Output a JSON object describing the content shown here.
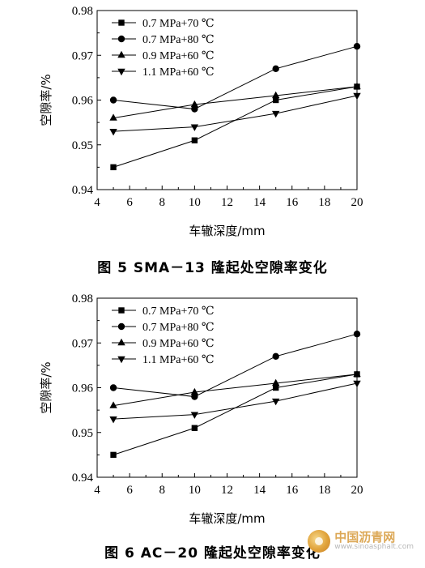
{
  "figures": [
    {
      "caption": "图 5   SMA－13 隆起处空隙率变化",
      "chart_data": {
        "type": "line",
        "xlabel": "车辙深度/mm",
        "ylabel": "空隙率/%",
        "xlim": [
          4,
          20
        ],
        "ylim": [
          0.94,
          0.98
        ],
        "xticks": [
          4,
          6,
          8,
          10,
          12,
          14,
          16,
          18,
          20
        ],
        "yticks": [
          0.94,
          0.95,
          0.96,
          0.97,
          0.98
        ],
        "legend_position": "top-left",
        "grid": false,
        "x": [
          5,
          10,
          15,
          20
        ],
        "series": [
          {
            "name": "0.7 MPa+70 ℃",
            "marker": "square",
            "values": [
              0.945,
              0.951,
              0.96,
              0.963
            ]
          },
          {
            "name": "0.7 MPa+80 ℃",
            "marker": "circle",
            "values": [
              0.96,
              0.958,
              0.967,
              0.972
            ]
          },
          {
            "name": "0.9 MPa+60 ℃",
            "marker": "triangle-up",
            "values": [
              0.956,
              0.959,
              0.961,
              0.963
            ]
          },
          {
            "name": "1.1 MPa+60 ℃",
            "marker": "triangle-down",
            "values": [
              0.953,
              0.954,
              0.957,
              0.961
            ]
          }
        ]
      }
    },
    {
      "caption": "图 6   AC－20 隆起处空隙率变化",
      "chart_data": {
        "type": "line",
        "xlabel": "车辙深度/mm",
        "ylabel": "空隙率/%",
        "xlim": [
          4,
          20
        ],
        "ylim": [
          0.94,
          0.98
        ],
        "xticks": [
          4,
          6,
          8,
          10,
          12,
          14,
          16,
          18,
          20
        ],
        "yticks": [
          0.94,
          0.95,
          0.96,
          0.97,
          0.98
        ],
        "legend_position": "top-left",
        "grid": false,
        "x": [
          5,
          10,
          15,
          20
        ],
        "series": [
          {
            "name": "0.7 MPa+70 ℃",
            "marker": "square",
            "values": [
              0.945,
              0.951,
              0.96,
              0.963
            ]
          },
          {
            "name": "0.7 MPa+80 ℃",
            "marker": "circle",
            "values": [
              0.96,
              0.958,
              0.967,
              0.972
            ]
          },
          {
            "name": "0.9 MPa+60 ℃",
            "marker": "triangle-up",
            "values": [
              0.956,
              0.959,
              0.961,
              0.963
            ]
          },
          {
            "name": "1.1 MPa+60 ℃",
            "marker": "triangle-down",
            "values": [
              0.953,
              0.954,
              0.957,
              0.961
            ]
          }
        ]
      }
    }
  ],
  "watermark": {
    "name": "中国沥青网",
    "url": "www.sinoasphalt.com",
    "logo_icon": "globe-logo-icon"
  }
}
